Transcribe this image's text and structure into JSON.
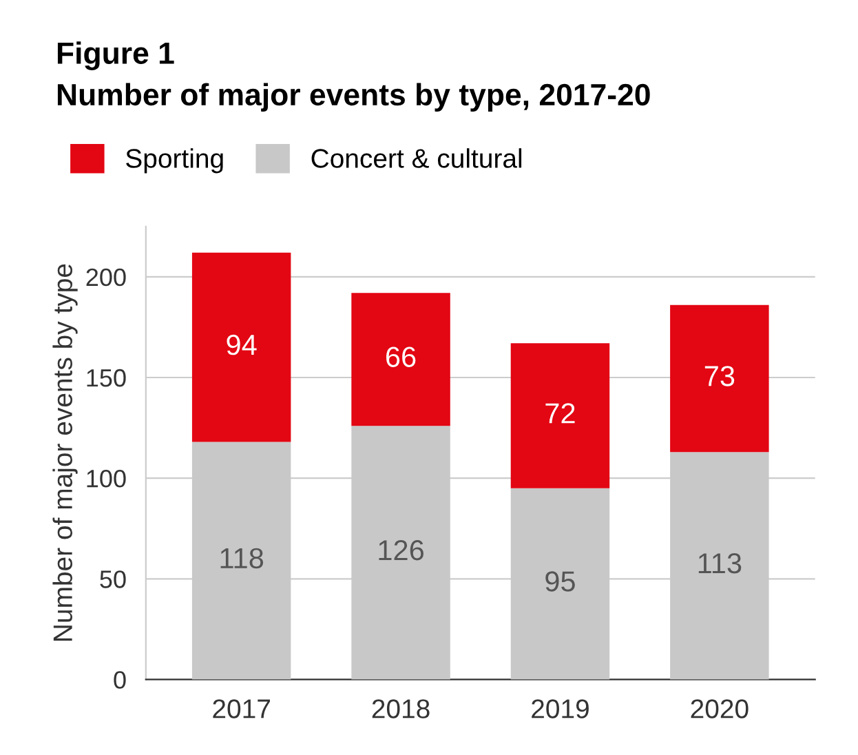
{
  "chart_data": {
    "type": "bar",
    "title": "Figure 1",
    "subtitle": "Number of major events by type, 2017-20",
    "ylabel": "Number of major events by type",
    "categories": [
      "2017",
      "2018",
      "2019",
      "2020"
    ],
    "series": [
      {
        "name": "Concert & cultural",
        "color": "#c8c8c8",
        "values": [
          118,
          126,
          95,
          113
        ]
      },
      {
        "name": "Sporting",
        "color": "#e30613",
        "values": [
          94,
          66,
          72,
          73
        ]
      }
    ],
    "stacked": true,
    "ylim": [
      0,
      225
    ],
    "yticks": [
      0,
      50,
      100,
      150,
      200
    ],
    "grid": "y",
    "legend": "top left",
    "data_labels": true
  }
}
